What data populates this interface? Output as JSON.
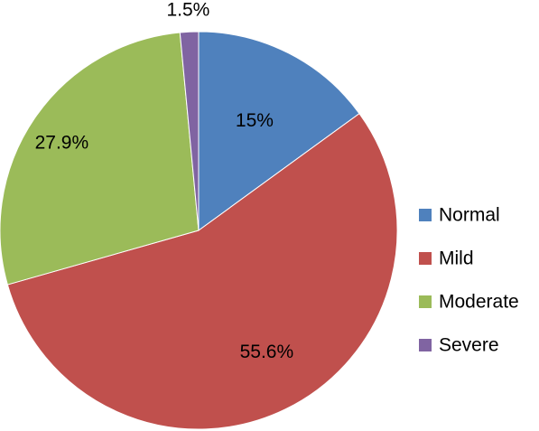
{
  "chart_data": {
    "type": "pie",
    "categories": [
      "Normal",
      "Mild",
      "Moderate",
      "Severe"
    ],
    "values": [
      15,
      55.6,
      27.9,
      1.5
    ],
    "data_labels": [
      "15%",
      "55.6%",
      "27.9%",
      "1.5%"
    ],
    "colors": [
      "#4F81BD",
      "#C0504D",
      "#9BBB59",
      "#8064A2"
    ],
    "start": "12 o'clock, clockwise",
    "legend": "right"
  }
}
